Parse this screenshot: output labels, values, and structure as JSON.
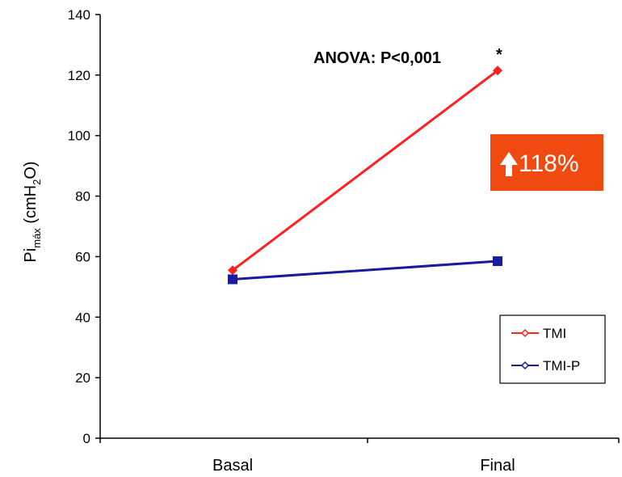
{
  "chart_data": {
    "type": "line",
    "categories": [
      "Basal",
      "Final"
    ],
    "ylabel_main": "Pi",
    "ylabel_sub": "máx",
    "ylabel_unit_pre": " (cmH",
    "ylabel_unit_sub": "2",
    "ylabel_unit_post": "O)",
    "ylim": [
      0,
      140
    ],
    "yticks": [
      0,
      20,
      40,
      60,
      80,
      100,
      120,
      140
    ],
    "grid": false,
    "legend_position": "bottom-right",
    "series": [
      {
        "name": "TMI",
        "values": [
          55.5,
          121.5
        ],
        "color": "#ff2020",
        "marker": "diamond"
      },
      {
        "name": "TMI-P",
        "values": [
          52.5,
          58.5
        ],
        "color": "#1a1aa0",
        "marker": "square"
      }
    ],
    "annotations": {
      "anova": "ANOVA: P<0,001",
      "star": "*",
      "badge": "118%",
      "badge_color": "#f04a10"
    }
  }
}
